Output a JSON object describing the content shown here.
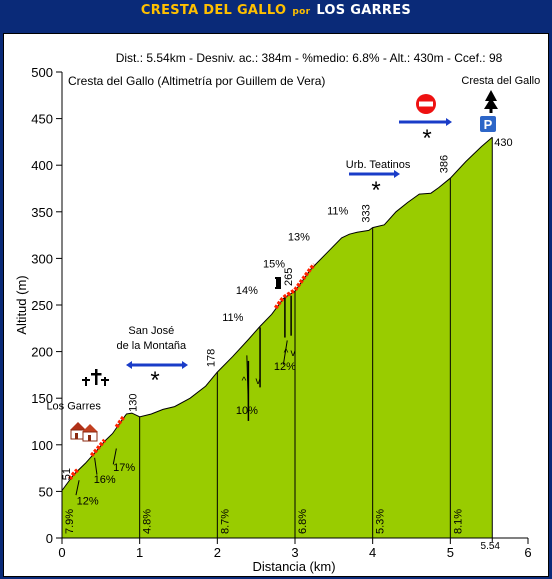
{
  "header": {
    "route": "CRESTA DEL GALLO",
    "por": "por",
    "origin": "LOS GARRES"
  },
  "chart_data": {
    "type": "area",
    "stats_line": "Dist.: 5.54km - Desniv. ac.: 384m - %medio: 6.8% - Alt.: 430m - Ccef.: 98",
    "subtitle": "Cresta del Gallo (Altimetría por Guillem de Vera)",
    "xlabel": "Distancia (km)",
    "ylabel": "Altitud (m)",
    "xlim": [
      0,
      6
    ],
    "ylim": [
      0,
      500
    ],
    "x_ticks": [
      "0",
      "1",
      "2",
      "3",
      "4",
      "5",
      "6"
    ],
    "y_ticks": [
      "0",
      "50",
      "100",
      "150",
      "200",
      "250",
      "300",
      "350",
      "400",
      "450",
      "500"
    ],
    "end_km_label": "5.54",
    "profile": [
      [
        0,
        51
      ],
      [
        0.15,
        68
      ],
      [
        0.3,
        80
      ],
      [
        0.45,
        94
      ],
      [
        0.55,
        104
      ],
      [
        0.65,
        112
      ],
      [
        0.75,
        124
      ],
      [
        0.83,
        133
      ],
      [
        0.9,
        134
      ],
      [
        1.0,
        130
      ],
      [
        1.15,
        133
      ],
      [
        1.3,
        138
      ],
      [
        1.45,
        141
      ],
      [
        1.65,
        150
      ],
      [
        1.85,
        163
      ],
      [
        2.0,
        178
      ],
      [
        2.2,
        195
      ],
      [
        2.4,
        213
      ],
      [
        2.55,
        227
      ],
      [
        2.7,
        240
      ],
      [
        2.85,
        257
      ],
      [
        3.0,
        265
      ],
      [
        3.2,
        288
      ],
      [
        3.4,
        305
      ],
      [
        3.6,
        322
      ],
      [
        3.7,
        326
      ],
      [
        3.8,
        328
      ],
      [
        3.95,
        330
      ],
      [
        4.0,
        333
      ],
      [
        4.15,
        336
      ],
      [
        4.3,
        350
      ],
      [
        4.45,
        360
      ],
      [
        4.6,
        369
      ],
      [
        4.75,
        370
      ],
      [
        4.85,
        376
      ],
      [
        5.0,
        386
      ],
      [
        5.2,
        404
      ],
      [
        5.4,
        420
      ],
      [
        5.54,
        430
      ]
    ],
    "km_markers": [
      {
        "x": 1,
        "altitude": "130",
        "grade": "4.8%"
      },
      {
        "x": 2,
        "altitude": "178",
        "grade": "8.7%"
      },
      {
        "x": 3,
        "altitude": "265",
        "grade": "6.8%"
      },
      {
        "x": 4,
        "altitude": "333",
        "grade": "5.3%"
      },
      {
        "x": 5,
        "altitude": "386",
        "grade": "8.1%"
      },
      {
        "x": 5.54,
        "altitude": "430",
        "grade": ""
      }
    ],
    "start_label": {
      "altitude": "51",
      "grade": "7.9%"
    },
    "steep_segments": [
      [
        0.1,
        0.2
      ],
      [
        0.38,
        0.55
      ],
      [
        0.7,
        0.8
      ],
      [
        2.75,
        3.25
      ]
    ],
    "grade_annotations": [
      {
        "text": "12%",
        "x": 0.33,
        "y": 36
      },
      {
        "text": "16%",
        "x": 0.55,
        "y": 59
      },
      {
        "text": "17%",
        "x": 0.8,
        "y": 72
      },
      {
        "text": "10%",
        "x": 2.38,
        "y": 133
      },
      {
        "text": "12%",
        "x": 2.87,
        "y": 180
      },
      {
        "text": "11%",
        "x": 2.2,
        "y": 233
      },
      {
        "text": "14%",
        "x": 2.38,
        "y": 262
      },
      {
        "text": "15%",
        "x": 2.73,
        "y": 290
      },
      {
        "text": "13%",
        "x": 3.05,
        "y": 319
      },
      {
        "text": "11%",
        "x": 3.55,
        "y": 347
      }
    ],
    "places": [
      {
        "name": "Los Garres",
        "x": 0.15,
        "y": 138
      },
      {
        "name": "San José",
        "x": 1.15,
        "y": 219
      },
      {
        "name": "de la Montaña",
        "x": 1.15,
        "y": 203
      },
      {
        "name": "Urb. Teatinos",
        "x": 4.07,
        "y": 397
      },
      {
        "name": "Cresta del Gallo",
        "x": 5.65,
        "y": 487
      }
    ],
    "colors": {
      "profile_fill": "#99cc00",
      "steep": "#ff2200",
      "arrow": "#1a3cc8",
      "no_entry": "#ee1111",
      "parking": "#2d66c8",
      "background": "#0a2a78"
    }
  }
}
